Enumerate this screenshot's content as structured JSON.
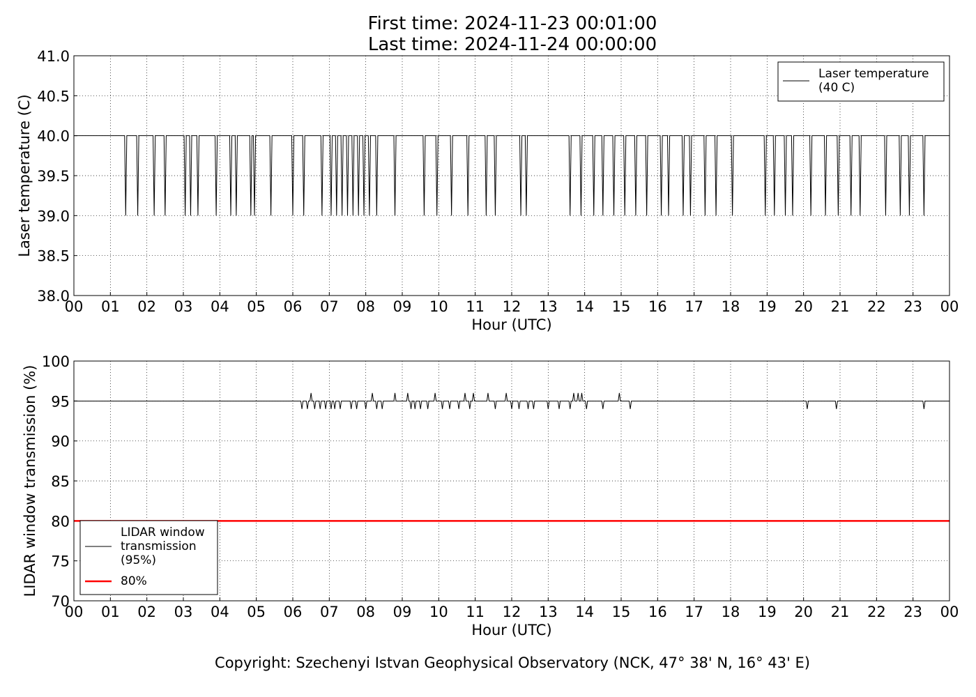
{
  "title": [
    "First time: 2024-11-23 00:01:00",
    "Last time: 2024-11-24 00:00:00"
  ],
  "footer": "Copyright: Szechenyi Istvan Geophysical Observatory (NCK, 47° 38' N, 16° 43' E)",
  "chart_data": [
    {
      "type": "line",
      "xlabel": "Hour (UTC)",
      "ylabel": "Laser temperature (C)",
      "xlim": [
        0,
        24
      ],
      "ylim": [
        38,
        41
      ],
      "grid": true,
      "legend": "upper right",
      "xticks": [
        {
          "value": 0,
          "label": "00"
        },
        {
          "value": 1,
          "label": "01"
        },
        {
          "value": 2,
          "label": "02"
        },
        {
          "value": 3,
          "label": "03"
        },
        {
          "value": 4,
          "label": "04"
        },
        {
          "value": 5,
          "label": "05"
        },
        {
          "value": 6,
          "label": "06"
        },
        {
          "value": 7,
          "label": "07"
        },
        {
          "value": 8,
          "label": "08"
        },
        {
          "value": 9,
          "label": "09"
        },
        {
          "value": 10,
          "label": "10"
        },
        {
          "value": 11,
          "label": "11"
        },
        {
          "value": 12,
          "label": "12"
        },
        {
          "value": 13,
          "label": "13"
        },
        {
          "value": 14,
          "label": "14"
        },
        {
          "value": 15,
          "label": "15"
        },
        {
          "value": 16,
          "label": "16"
        },
        {
          "value": 17,
          "label": "17"
        },
        {
          "value": 18,
          "label": "18"
        },
        {
          "value": 19,
          "label": "19"
        },
        {
          "value": 20,
          "label": "20"
        },
        {
          "value": 21,
          "label": "21"
        },
        {
          "value": 22,
          "label": "22"
        },
        {
          "value": 23,
          "label": "23"
        },
        {
          "value": 24,
          "label": "00"
        }
      ],
      "yticks": [
        {
          "value": 38,
          "label": "38.0"
        },
        38.5,
        {
          "value": 39,
          "label": "39.0"
        },
        39.5,
        {
          "value": 40,
          "label": "40.0"
        },
        40.5,
        {
          "value": 41,
          "label": "41.0"
        }
      ],
      "x": [
        0,
        1.39,
        1.42,
        1.45,
        1.72,
        1.75,
        1.78,
        2.17,
        2.2,
        2.23,
        2.47,
        2.5,
        2.53,
        3.02,
        3.05,
        3.08,
        3.17,
        3.2,
        3.23,
        3.37,
        3.4,
        3.43,
        3.87,
        3.9,
        3.93,
        4.27,
        4.3,
        4.33,
        4.42,
        4.45,
        4.48,
        4.82,
        4.85,
        4.88,
        4.92,
        4.95,
        4.98,
        5.37,
        5.4,
        5.43,
        5.97,
        6.0,
        6.03,
        6.27,
        6.3,
        6.33,
        6.77,
        6.8,
        6.83,
        7.02,
        7.05,
        7.08,
        7.17,
        7.2,
        7.23,
        7.32,
        7.35,
        7.38,
        7.47,
        7.5,
        7.53,
        7.62,
        7.65,
        7.68,
        7.77,
        7.8,
        7.83,
        7.92,
        7.95,
        7.98,
        8.07,
        8.1,
        8.13,
        8.27,
        8.3,
        8.33,
        8.77,
        8.8,
        8.83,
        9.57,
        9.6,
        9.63,
        9.92,
        9.95,
        9.98,
        10.32,
        10.35,
        10.38,
        10.77,
        10.8,
        10.83,
        11.27,
        11.3,
        11.33,
        11.52,
        11.55,
        11.58,
        12.22,
        12.25,
        12.28,
        12.37,
        12.4,
        12.43,
        13.57,
        13.6,
        13.63,
        13.87,
        13.9,
        13.93,
        14.22,
        14.25,
        14.28,
        14.47,
        14.5,
        14.53,
        14.77,
        14.8,
        14.83,
        15.07,
        15.1,
        15.13,
        15.37,
        15.4,
        15.43,
        15.67,
        15.7,
        15.73,
        16.07,
        16.1,
        16.13,
        16.27,
        16.3,
        16.33,
        16.67,
        16.7,
        16.73,
        16.87,
        16.9,
        16.93,
        17.27,
        17.3,
        17.33,
        17.57,
        17.6,
        17.63,
        18.02,
        18.05,
        18.08,
        18.92,
        18.95,
        18.98,
        19.17,
        19.2,
        19.23,
        19.47,
        19.5,
        19.53,
        19.67,
        19.7,
        19.73,
        20.17,
        20.2,
        20.23,
        20.57,
        20.6,
        20.63,
        20.92,
        20.95,
        20.98,
        21.27,
        21.3,
        21.33,
        21.52,
        21.55,
        21.58,
        22.22,
        22.25,
        22.28,
        22.62,
        22.65,
        22.68,
        22.87,
        22.9,
        22.93,
        23.27,
        23.3,
        23.33,
        24
      ],
      "series": [
        {
          "name": "Laser temperature\n(40 C)",
          "color": "#000000",
          "width": 1,
          "values": [
            40,
            40,
            39,
            40,
            40,
            39,
            40,
            40,
            39,
            40,
            40,
            39,
            40,
            40,
            39,
            40,
            40,
            39,
            40,
            40,
            39,
            40,
            40,
            39,
            40,
            40,
            39,
            40,
            40,
            39,
            40,
            40,
            39,
            40,
            40,
            39,
            40,
            40,
            39,
            40,
            40,
            39,
            40,
            40,
            39,
            40,
            40,
            39,
            40,
            40,
            39,
            40,
            40,
            39,
            40,
            40,
            39,
            40,
            40,
            39,
            40,
            40,
            39,
            40,
            40,
            39,
            40,
            40,
            39,
            40,
            40,
            39,
            40,
            40,
            39,
            40,
            40,
            39,
            40,
            40,
            39,
            40,
            40,
            39,
            40,
            40,
            39,
            40,
            40,
            39,
            40,
            40,
            39,
            40,
            40,
            39,
            40,
            40,
            39,
            40,
            40,
            39,
            40,
            40,
            39,
            40,
            40,
            39,
            40,
            40,
            39,
            40,
            40,
            39,
            40,
            40,
            39,
            40,
            40,
            39,
            40,
            40,
            39,
            40,
            40,
            39,
            40,
            40,
            39,
            40,
            40,
            39,
            40,
            40,
            39,
            40,
            40,
            39,
            40,
            40,
            39,
            40,
            40,
            39,
            40,
            40,
            39,
            40,
            40,
            39,
            40,
            40,
            39,
            40,
            40,
            39,
            40,
            40,
            39,
            40,
            40,
            39,
            40,
            40,
            39,
            40,
            40,
            39,
            40,
            40,
            39,
            40,
            40,
            39,
            40,
            40,
            39,
            40,
            40,
            39,
            40,
            40,
            39,
            40,
            40,
            39,
            40,
            40
          ]
        }
      ]
    },
    {
      "type": "line",
      "xlabel": "Hour (UTC)",
      "ylabel": "LIDAR window transmission (%)",
      "xlim": [
        0,
        24
      ],
      "ylim": [
        70,
        100
      ],
      "grid": true,
      "legend": "lower left",
      "xticks": [
        {
          "value": 0,
          "label": "00"
        },
        {
          "value": 1,
          "label": "01"
        },
        {
          "value": 2,
          "label": "02"
        },
        {
          "value": 3,
          "label": "03"
        },
        {
          "value": 4,
          "label": "04"
        },
        {
          "value": 5,
          "label": "05"
        },
        {
          "value": 6,
          "label": "06"
        },
        {
          "value": 7,
          "label": "07"
        },
        {
          "value": 8,
          "label": "08"
        },
        {
          "value": 9,
          "label": "09"
        },
        {
          "value": 10,
          "label": "10"
        },
        {
          "value": 11,
          "label": "11"
        },
        {
          "value": 12,
          "label": "12"
        },
        {
          "value": 13,
          "label": "13"
        },
        {
          "value": 14,
          "label": "14"
        },
        {
          "value": 15,
          "label": "15"
        },
        {
          "value": 16,
          "label": "16"
        },
        {
          "value": 17,
          "label": "17"
        },
        {
          "value": 18,
          "label": "18"
        },
        {
          "value": 19,
          "label": "19"
        },
        {
          "value": 20,
          "label": "20"
        },
        {
          "value": 21,
          "label": "21"
        },
        {
          "value": 22,
          "label": "22"
        },
        {
          "value": 23,
          "label": "23"
        },
        {
          "value": 24,
          "label": "00"
        }
      ],
      "yticks": [
        70,
        75,
        80,
        85,
        90,
        95,
        100
      ],
      "series": [
        {
          "name": "LIDAR window\ntransmission\n(95%)",
          "color": "#000000",
          "width": 1,
          "x": [
            0,
            6.22,
            6.25,
            6.28,
            6.37,
            6.4,
            6.43,
            6.47,
            6.5,
            6.53,
            6.57,
            6.6,
            6.63,
            6.72,
            6.75,
            6.78,
            6.87,
            6.9,
            6.93,
            7.02,
            7.05,
            7.08,
            7.12,
            7.15,
            7.18,
            7.27,
            7.3,
            7.33,
            7.57,
            7.6,
            7.63,
            7.72,
            7.75,
            7.78,
            7.97,
            8.0,
            8.03,
            8.15,
            8.18,
            8.21,
            8.27,
            8.3,
            8.33,
            8.42,
            8.45,
            8.48,
            8.77,
            8.8,
            8.83,
            9.12,
            9.15,
            9.18,
            9.21,
            9.24,
            9.27,
            9.32,
            9.35,
            9.38,
            9.47,
            9.5,
            9.53,
            9.67,
            9.7,
            9.73,
            9.87,
            9.9,
            9.93,
            10.07,
            10.1,
            10.13,
            10.27,
            10.3,
            10.33,
            10.52,
            10.55,
            10.58,
            10.69,
            10.72,
            10.75,
            10.82,
            10.85,
            10.88,
            10.92,
            10.95,
            10.98,
            11.32,
            11.35,
            11.38,
            11.52,
            11.55,
            11.58,
            11.82,
            11.85,
            11.88,
            11.97,
            12.0,
            12.03,
            12.17,
            12.2,
            12.23,
            12.42,
            12.45,
            12.48,
            12.57,
            12.6,
            12.63,
            12.97,
            13.0,
            13.03,
            13.27,
            13.3,
            13.33,
            13.57,
            13.6,
            13.63,
            13.67,
            13.7,
            13.73,
            13.79,
            13.82,
            13.85,
            13.89,
            13.92,
            13.95,
            14.02,
            14.05,
            14.08,
            14.47,
            14.5,
            14.53,
            14.92,
            14.95,
            14.98,
            15.22,
            15.25,
            15.28,
            20.07,
            20.1,
            20.13,
            20.87,
            20.9,
            20.93,
            23.27,
            23.3,
            23.33,
            24
          ],
          "values": [
            95,
            95,
            94,
            95,
            95,
            94,
            95,
            95,
            96,
            95,
            95,
            94,
            95,
            95,
            94,
            95,
            95,
            94,
            95,
            95,
            94,
            95,
            95,
            94,
            95,
            95,
            94,
            95,
            95,
            94,
            95,
            95,
            94,
            95,
            95,
            94,
            95,
            95,
            96,
            95,
            95,
            94,
            95,
            95,
            94,
            95,
            95,
            96,
            95,
            95,
            96,
            95,
            95,
            94,
            95,
            95,
            94,
            95,
            95,
            94,
            95,
            95,
            94,
            95,
            95,
            96,
            95,
            95,
            94,
            95,
            95,
            94,
            95,
            95,
            94,
            95,
            95,
            96,
            95,
            95,
            94,
            95,
            95,
            96,
            95,
            95,
            96,
            95,
            95,
            94,
            95,
            95,
            96,
            95,
            95,
            94,
            95,
            95,
            94,
            95,
            95,
            94,
            95,
            95,
            94,
            95,
            95,
            94,
            95,
            95,
            94,
            95,
            95,
            94,
            95,
            95,
            96,
            95,
            95,
            96,
            95,
            95,
            96,
            95,
            95,
            94,
            95,
            95,
            94,
            95,
            95,
            96,
            95,
            95,
            94,
            95,
            95,
            94,
            95,
            95,
            94,
            95,
            95,
            94,
            95,
            95
          ]
        },
        {
          "name": "80%",
          "color": "#ff0000",
          "width": 2.5,
          "x": [
            0,
            24
          ],
          "values": [
            80,
            80
          ]
        }
      ]
    }
  ]
}
